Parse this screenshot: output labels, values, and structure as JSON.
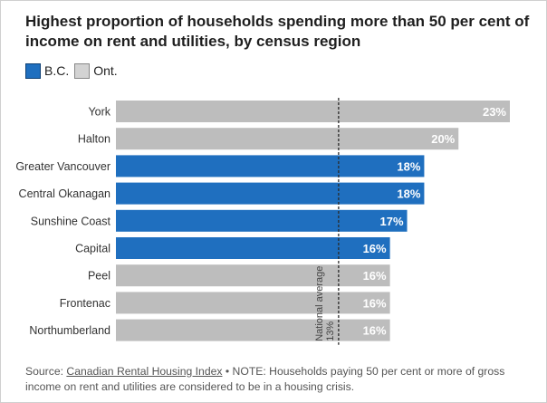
{
  "title": "Highest proportion of households spending more than 50 per cent of income on rent and utilities, by census region",
  "legend": [
    {
      "label": "B.C.",
      "color": "#1f6fbf",
      "border": "#0d3f73"
    },
    {
      "label": "Ont.",
      "color": "#d3d3d3",
      "border": "#888888"
    }
  ],
  "source": {
    "prefix": "Source: ",
    "link_text": "Canadian Rental Housing Index",
    "note": " • NOTE: Households paying 50 per cent or more of gross income on rent and utilities are considered to be in a housing crisis."
  },
  "chart_data": {
    "type": "bar",
    "orientation": "horizontal",
    "categories": [
      "York",
      "Halton",
      "Greater Vancouver",
      "Central Okanagan",
      "Sunshine Coast",
      "Capital",
      "Peel",
      "Frontenac",
      "Northumberland"
    ],
    "values": [
      23,
      20,
      18,
      18,
      17,
      16,
      16,
      16,
      16
    ],
    "regions": [
      "Ont.",
      "Ont.",
      "B.C.",
      "B.C.",
      "B.C.",
      "B.C.",
      "Ont.",
      "Ont.",
      "Ont."
    ],
    "value_labels": [
      "23%",
      "20%",
      "18%",
      "18%",
      "17%",
      "16%",
      "16%",
      "16%",
      "16%"
    ],
    "xlim": [
      0,
      23
    ],
    "colors": {
      "B.C.": "#1f6fbf",
      "Ont.": "#bdbdbd"
    },
    "reference_line": {
      "value": 13,
      "label_line1": "National average",
      "label_line2": "13%"
    }
  }
}
